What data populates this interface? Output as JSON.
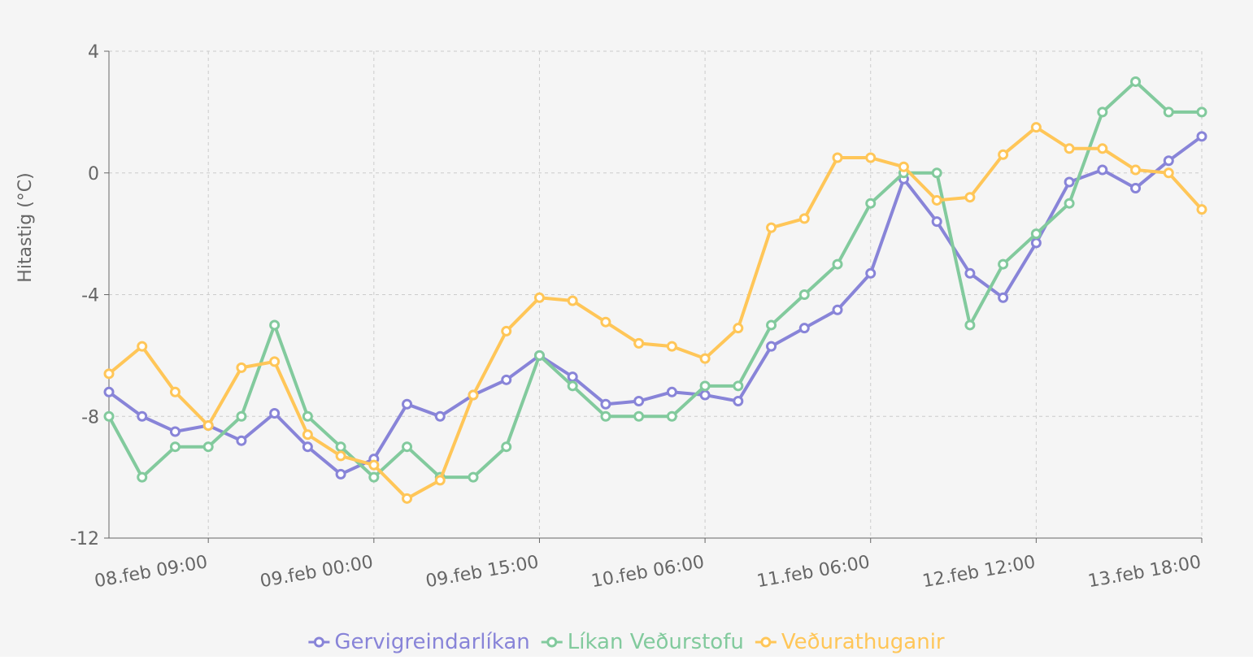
{
  "chart_data": {
    "type": "line",
    "y_label": "Hitastig (°C)",
    "categories": [
      null,
      null,
      null,
      "08.feb 09:00",
      null,
      null,
      null,
      null,
      "09.feb 00:00",
      null,
      null,
      null,
      null,
      "09.feb 15:00",
      null,
      null,
      null,
      null,
      "10.feb 06:00",
      null,
      null,
      null,
      null,
      "11.feb 06:00",
      null,
      null,
      null,
      null,
      "12.feb 12:00",
      null,
      null,
      null,
      null,
      "13.feb 18:00"
    ],
    "series": [
      {
        "name": "Gervigreindarlíkan",
        "color": "#8884d8",
        "values": [
          -7.2,
          -8.0,
          -8.5,
          -8.3,
          -8.8,
          -7.9,
          -9.0,
          -9.9,
          -9.4,
          -7.6,
          -8.0,
          -7.3,
          -6.8,
          -6.0,
          -6.7,
          -7.6,
          -7.5,
          -7.2,
          -7.3,
          -7.5,
          -5.7,
          -5.1,
          -4.5,
          -3.3,
          -0.2,
          -1.6,
          -3.3,
          -4.1,
          -2.3,
          -0.3,
          0.1,
          -0.5,
          0.4,
          1.2
        ]
      },
      {
        "name": "Líkan Veðurstofu",
        "color": "#82ca9d",
        "values": [
          -8,
          -10,
          -9,
          -9,
          -8,
          -5,
          -8,
          -9,
          -10,
          -9,
          -10,
          -10,
          -9,
          -6,
          -7,
          -8,
          -8,
          -8,
          -7,
          -7,
          -5,
          -4,
          -3,
          -1,
          0,
          0,
          -5,
          -3,
          -2,
          -1,
          2,
          3,
          2,
          2
        ]
      },
      {
        "name": "Veðurathuganir",
        "color": "#ffc658",
        "values": [
          -6.6,
          -5.7,
          -7.2,
          -8.3,
          -6.4,
          -6.2,
          -8.6,
          -9.3,
          -9.6,
          -10.7,
          -10.1,
          -7.3,
          -5.2,
          -4.1,
          -4.2,
          -4.9,
          -5.6,
          -5.7,
          -6.1,
          -5.1,
          -1.8,
          -1.5,
          0.5,
          0.5,
          0.2,
          -0.9,
          -0.8,
          0.6,
          1.5,
          0.8,
          0.8,
          0.1,
          0,
          -1.2
        ]
      }
    ],
    "ylim": [
      -12,
      4
    ],
    "yticks": [
      4,
      0,
      -4,
      -8,
      -12
    ],
    "grid": true,
    "legend": "bottom"
  }
}
